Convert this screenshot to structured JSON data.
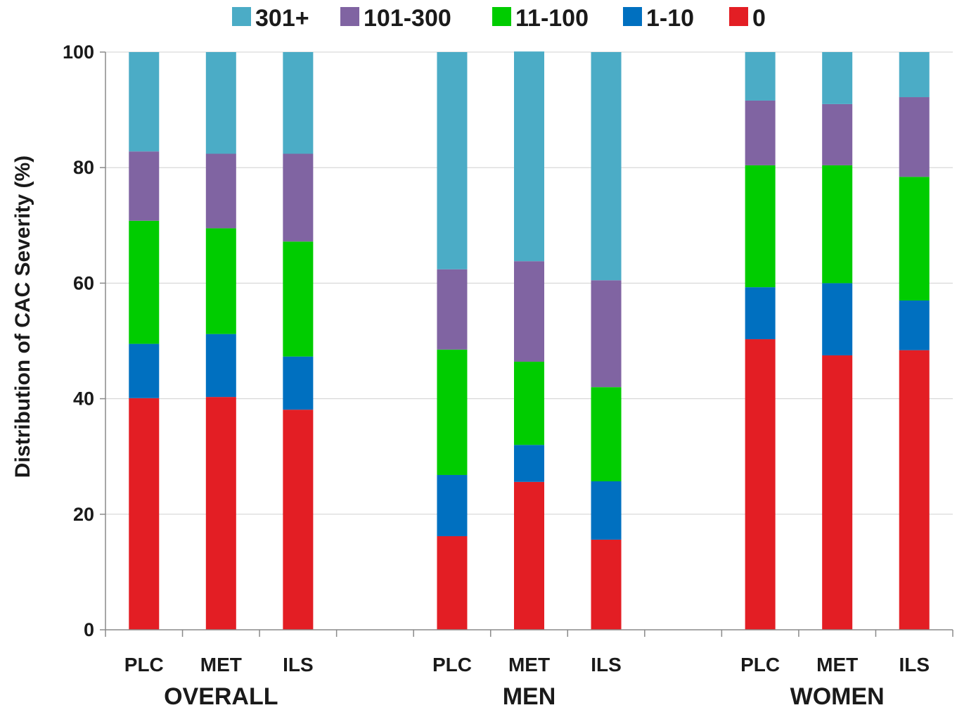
{
  "chart_data": {
    "type": "bar",
    "stacked": true,
    "ylabel": "Distribution of CAC Severity  (%)",
    "xlabel": "",
    "ylim": [
      0,
      100
    ],
    "yticks": [
      0,
      20,
      40,
      60,
      80,
      100
    ],
    "grid": true,
    "legend_position": "top",
    "legend_order": [
      "301+",
      "101-300",
      "11-100",
      "1-10",
      "0"
    ],
    "categories": [
      "PLC",
      "MET",
      "ILS",
      "",
      "PLC",
      "MET",
      "ILS",
      "",
      "PLC",
      "MET",
      "ILS"
    ],
    "groups": [
      {
        "label": "OVERALL",
        "categories": [
          "PLC",
          "MET",
          "ILS"
        ]
      },
      {
        "label": "MEN",
        "categories": [
          "PLC",
          "MET",
          "ILS"
        ]
      },
      {
        "label": "WOMEN",
        "categories": [
          "PLC",
          "MET",
          "ILS"
        ]
      }
    ],
    "series": [
      {
        "name": "0",
        "color": "#e31e24",
        "values": [
          40.1,
          40.3,
          38.1,
          null,
          16.2,
          25.6,
          15.6,
          null,
          50.3,
          47.5,
          48.4
        ]
      },
      {
        "name": "1-10",
        "color": "#0070c0",
        "values": [
          9.4,
          10.9,
          9.2,
          null,
          10.6,
          6.4,
          10.1,
          null,
          9.0,
          12.5,
          8.6
        ]
      },
      {
        "name": "11-100",
        "color": "#00cc00",
        "values": [
          21.3,
          18.3,
          19.9,
          null,
          21.7,
          14.4,
          16.3,
          null,
          21.1,
          20.4,
          21.4
        ]
      },
      {
        "name": "101-300",
        "color": "#8064a2",
        "values": [
          12.0,
          12.9,
          15.2,
          null,
          13.9,
          17.4,
          18.5,
          null,
          11.2,
          10.6,
          13.8
        ]
      },
      {
        "name": "301+",
        "color": "#4bacc6",
        "values": [
          17.2,
          17.6,
          17.6,
          null,
          37.6,
          36.3,
          39.5,
          null,
          8.4,
          9.0,
          7.8
        ]
      }
    ]
  }
}
